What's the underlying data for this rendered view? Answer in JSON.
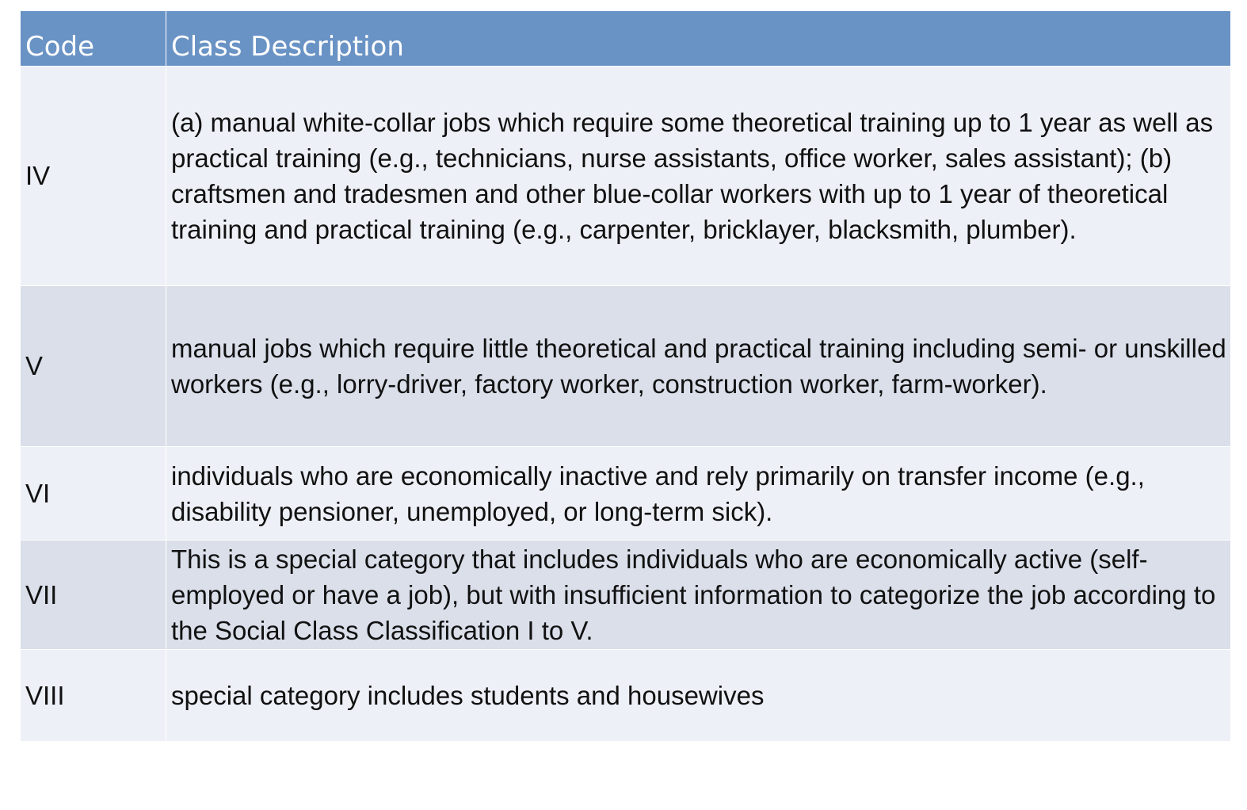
{
  "table": {
    "headers": {
      "code": "Code",
      "description": "Class Description"
    },
    "rows": [
      {
        "code": "IV",
        "description": "(a) manual white-collar jobs which require some theoretical training up to 1 year as well as practical training (e.g., technicians, nurse assistants, office worker, sales assistant); (b) craftsmen and tradesmen and other blue-collar workers with up to 1 year of theoretical training and practical training (e.g., carpenter, bricklayer, blacksmith, plumber)."
      },
      {
        "code": "V",
        "description": "manual jobs which require little theoretical and practical training including semi- or unskilled workers (e.g., lorry-driver, factory worker, construction worker, farm-worker)."
      },
      {
        "code": "VI",
        "description": "individuals who are economically inactive and rely primarily on transfer income (e.g., disability pensioner, unemployed, or long-term sick)."
      },
      {
        "code": "VII",
        "description": "This is a special category that includes individuals who are economically active (self-employed or have a job), but with insufficient information to categorize the job according to the Social Class Classification I to V."
      },
      {
        "code": "VIII",
        "description": "special category includes students and housewives"
      }
    ]
  },
  "colors": {
    "header_bg": "#6a93c5",
    "row_light": "#edf0f6",
    "row_dark": "#dadfea"
  }
}
